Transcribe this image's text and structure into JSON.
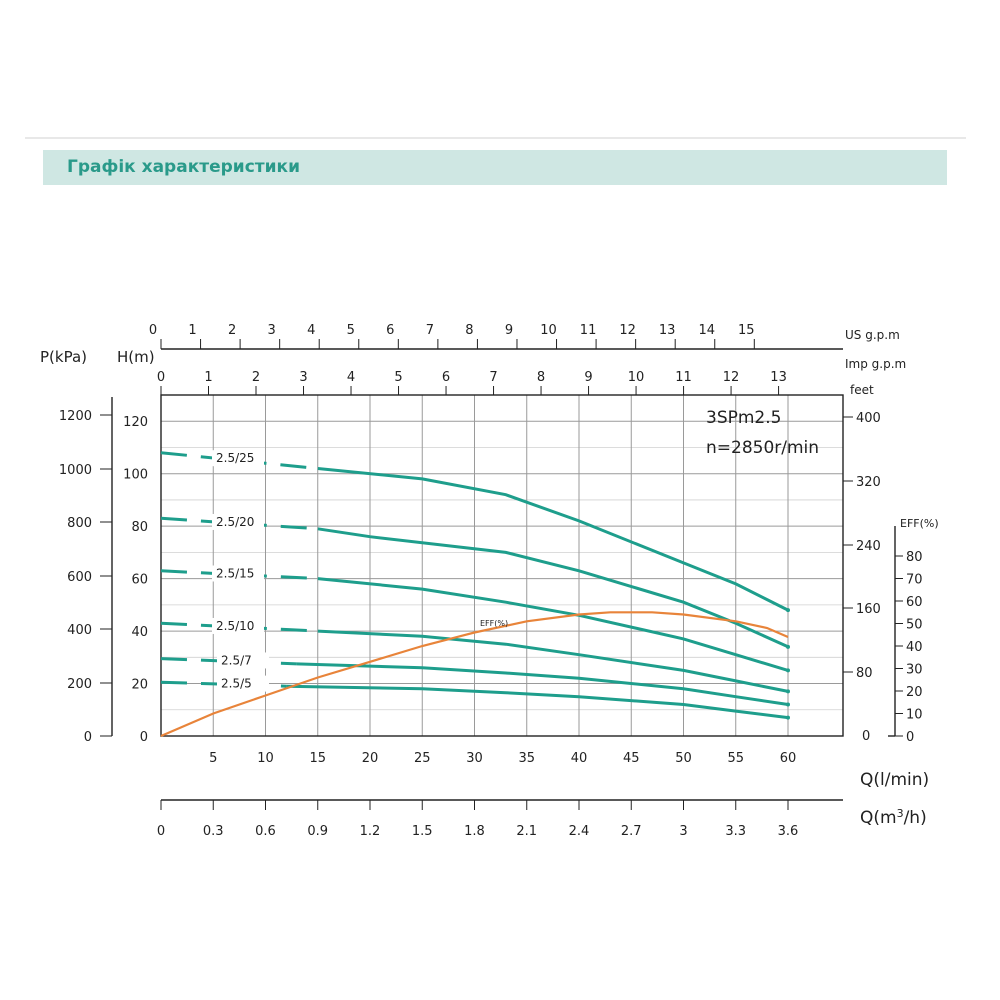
{
  "header": {
    "title": "Графік характеристики"
  },
  "chart_data": {
    "type": "line",
    "model": "3SPm2.5",
    "speed": "n=2850r/min",
    "x_primary": {
      "label": "Q(l/min)",
      "range": [
        0,
        65
      ],
      "ticks": [
        "5",
        "10",
        "15",
        "20",
        "25",
        "30",
        "35",
        "40",
        "45",
        "50",
        "55",
        "60"
      ],
      "tick_values": [
        5,
        10,
        15,
        20,
        25,
        30,
        35,
        40,
        45,
        50,
        55,
        60
      ]
    },
    "x_m3h": {
      "label_prefix": "Q(m",
      "label_sup": "3",
      "label_suffix": "/h)",
      "ticks": [
        "0",
        "0.3",
        "0.6",
        "0.9",
        "1.2",
        "1.5",
        "1.8",
        "2.1",
        "2.4",
        "2.7",
        "3",
        "3.3",
        "3.6"
      ]
    },
    "x_usgpm": {
      "label": "US g.p.m",
      "ticks": [
        "0",
        "1",
        "2",
        "3",
        "4",
        "5",
        "6",
        "7",
        "8",
        "9",
        "10",
        "11",
        "12",
        "13",
        "14",
        "15"
      ]
    },
    "x_impgpm": {
      "label": "Imp g.p.m",
      "ticks": [
        "0",
        "1",
        "2",
        "3",
        "4",
        "5",
        "6",
        "7",
        "8",
        "9",
        "10",
        "11",
        "12",
        "13"
      ]
    },
    "y_head": {
      "label": "H(m)",
      "range": [
        0,
        130
      ],
      "ticks": [
        "0",
        "20",
        "40",
        "60",
        "80",
        "100",
        "120"
      ],
      "tick_values": [
        0,
        20,
        40,
        60,
        80,
        100,
        120
      ]
    },
    "y_pressure": {
      "label": "P(kPa)",
      "ticks": [
        "0",
        "200",
        "400",
        "600",
        "800",
        "1000",
        "1200"
      ]
    },
    "y_feet": {
      "label": "feet",
      "ticks": [
        "80",
        "160",
        "240",
        "320",
        "400"
      ],
      "zero": "0"
    },
    "y_eff": {
      "label": "EFF(%)",
      "ticks": [
        "0",
        "10",
        "20",
        "30",
        "40",
        "50",
        "60",
        "70",
        "80"
      ]
    },
    "series": [
      {
        "name": "2.5/25",
        "dashed_to": 15,
        "x": [
          0,
          15,
          25,
          33,
          40,
          50,
          55,
          58,
          60
        ],
        "y": [
          108,
          102,
          98,
          92,
          82,
          66,
          58,
          52,
          48
        ]
      },
      {
        "name": "2.5/20",
        "dashed_to": 15,
        "x": [
          0,
          15,
          20,
          33,
          40,
          50,
          55,
          60
        ],
        "y": [
          83,
          79,
          76,
          70,
          63,
          51,
          43,
          34
        ]
      },
      {
        "name": "2.5/15",
        "dashed_to": 15,
        "x": [
          0,
          15,
          25,
          33,
          40,
          50,
          55,
          60
        ],
        "y": [
          63,
          60,
          56,
          51,
          46,
          37,
          31,
          25
        ]
      },
      {
        "name": "2.5/10",
        "dashed_to": 15,
        "x": [
          0,
          15,
          25,
          33,
          40,
          50,
          55,
          60
        ],
        "y": [
          43,
          40,
          38,
          35,
          31,
          25,
          21,
          17
        ]
      },
      {
        "name": "2.5/7",
        "dashed_to": 13,
        "x": [
          0,
          13,
          25,
          33,
          40,
          50,
          55,
          60
        ],
        "y": [
          29.5,
          27.5,
          26,
          24,
          22,
          18,
          15,
          12
        ]
      },
      {
        "name": "2.5/5",
        "dashed_to": 12,
        "x": [
          0,
          12,
          25,
          33,
          40,
          50,
          55,
          60
        ],
        "y": [
          20.5,
          19,
          18,
          16.5,
          15,
          12,
          9.5,
          7
        ]
      }
    ],
    "eff_curve": {
      "name": "EFF(%)",
      "x": [
        0,
        5,
        10,
        15,
        20,
        25,
        30,
        35,
        40,
        43,
        47,
        50,
        55,
        58,
        60
      ],
      "y": [
        0,
        10,
        18,
        26,
        33,
        40,
        46,
        51,
        54,
        55,
        55,
        54,
        51,
        48,
        44
      ]
    },
    "grid": true
  }
}
